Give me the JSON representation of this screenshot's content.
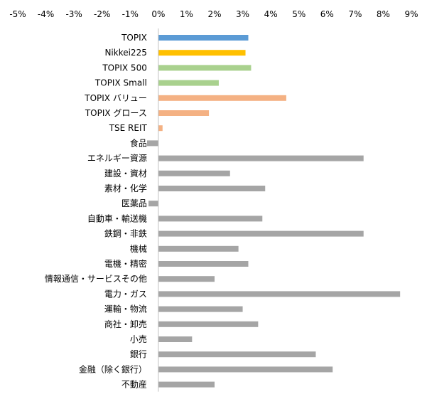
{
  "chart_data": {
    "type": "bar",
    "orientation": "horizontal",
    "title": "",
    "xlabel": "",
    "ylabel": "",
    "xlim": [
      -5,
      9
    ],
    "x_ticks": [
      -5,
      -4,
      -3,
      -2,
      -1,
      0,
      1,
      2,
      3,
      4,
      5,
      6,
      7,
      8,
      9
    ],
    "x_tick_labels": [
      "-5%",
      "-4%",
      "-3%",
      "-2%",
      "-1%",
      "0%",
      "1%",
      "2%",
      "3%",
      "4%",
      "5%",
      "6%",
      "7%",
      "8%",
      "9%"
    ],
    "x_axis_position": "top",
    "grid": false,
    "legend": "none",
    "categories": [
      "TOPIX",
      "Nikkei225",
      "TOPIX 500",
      "TOPIX Small",
      "TOPIX バリュー",
      "TOPIX グロース",
      "TSE REIT",
      "食品",
      "エネルギー資源",
      "建設・資材",
      "素材・化学",
      "医薬品",
      "自動車・輸送機",
      "鉄鋼・非鉄",
      "機械",
      "電機・精密",
      "情報通信・サービスその他",
      "電力・ガス",
      "運輸・物流",
      "商社・卸売",
      "小売",
      "銀行",
      "金融（除く銀行）",
      "不動産"
    ],
    "values": [
      3.2,
      3.1,
      3.3,
      2.15,
      4.55,
      1.8,
      0.15,
      -0.4,
      7.3,
      2.55,
      3.8,
      -0.35,
      3.7,
      7.3,
      2.85,
      3.2,
      2.0,
      8.6,
      3.0,
      3.55,
      1.2,
      5.6,
      6.2,
      2.0
    ],
    "bar_colors": [
      "#5B9BD5",
      "#FFC000",
      "#A9D18E",
      "#A9D18E",
      "#F4B183",
      "#F4B183",
      "#F4B183",
      "#A5A5A5",
      "#A5A5A5",
      "#A5A5A5",
      "#A5A5A5",
      "#A5A5A5",
      "#A5A5A5",
      "#A5A5A5",
      "#A5A5A5",
      "#A5A5A5",
      "#A5A5A5",
      "#A5A5A5",
      "#A5A5A5",
      "#A5A5A5",
      "#A5A5A5",
      "#A5A5A5",
      "#A5A5A5",
      "#A5A5A5"
    ]
  }
}
